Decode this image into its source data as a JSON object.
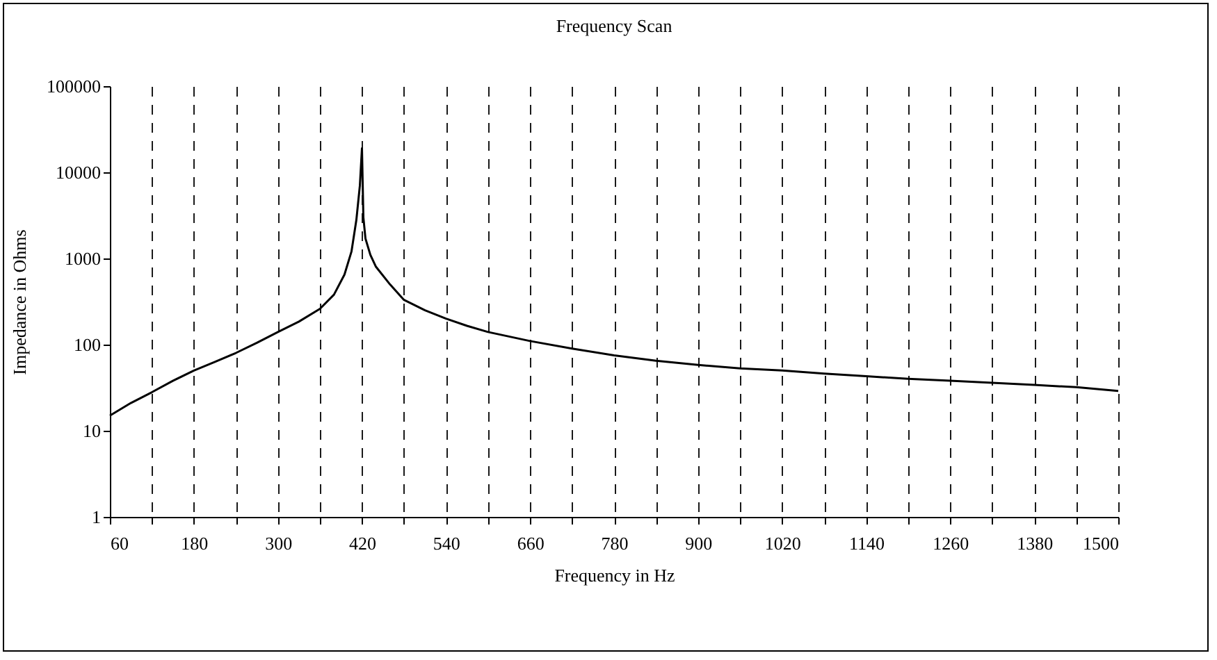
{
  "chart_data": {
    "type": "line",
    "title": "Frequency Scan",
    "xlabel": "Frequency in Hz",
    "ylabel": "Impedance in Ohms",
    "x": [
      60,
      90,
      120,
      150,
      180,
      210,
      240,
      270,
      300,
      330,
      360,
      380,
      395,
      405,
      412,
      417,
      420,
      422,
      425,
      432,
      440,
      460,
      480,
      510,
      540,
      570,
      600,
      660,
      720,
      780,
      840,
      900,
      960,
      1020,
      1080,
      1140,
      1200,
      1260,
      1320,
      1380,
      1440,
      1500
    ],
    "series": [
      {
        "color": "#000000",
        "values": [
          15,
          21,
          28,
          38,
          50,
          63,
          80,
          105,
          140,
          185,
          260,
          380,
          650,
          1200,
          2800,
          7000,
          19000,
          3000,
          1700,
          1100,
          800,
          500,
          330,
          250,
          200,
          165,
          140,
          110,
          90,
          75,
          65,
          58,
          53,
          50,
          46,
          43,
          40,
          38,
          36,
          34,
          32,
          29
        ]
      }
    ],
    "xlim": [
      60,
      1500
    ],
    "xticks": [
      60,
      {
        "value": 120,
        "label": null
      },
      180,
      {
        "value": 240,
        "label": null
      },
      300,
      {
        "value": 360,
        "label": null
      },
      420,
      {
        "value": 480,
        "label": null
      },
      540,
      {
        "value": 600,
        "label": null
      },
      660,
      {
        "value": 720,
        "label": null
      },
      780,
      {
        "value": 840,
        "label": null
      },
      900,
      {
        "value": 960,
        "label": null
      },
      1020,
      {
        "value": 1080,
        "label": null
      },
      1140,
      {
        "value": 1200,
        "label": null
      },
      1260,
      {
        "value": 1320,
        "label": null
      },
      1380,
      {
        "value": 1440,
        "label": null
      },
      1500
    ],
    "ylim": [
      1,
      100000
    ],
    "yticks": [
      1,
      10,
      100,
      1000,
      10000,
      100000
    ],
    "log": true,
    "grid": "x",
    "legend": false,
    "line_style": "solid",
    "marker": "none"
  }
}
